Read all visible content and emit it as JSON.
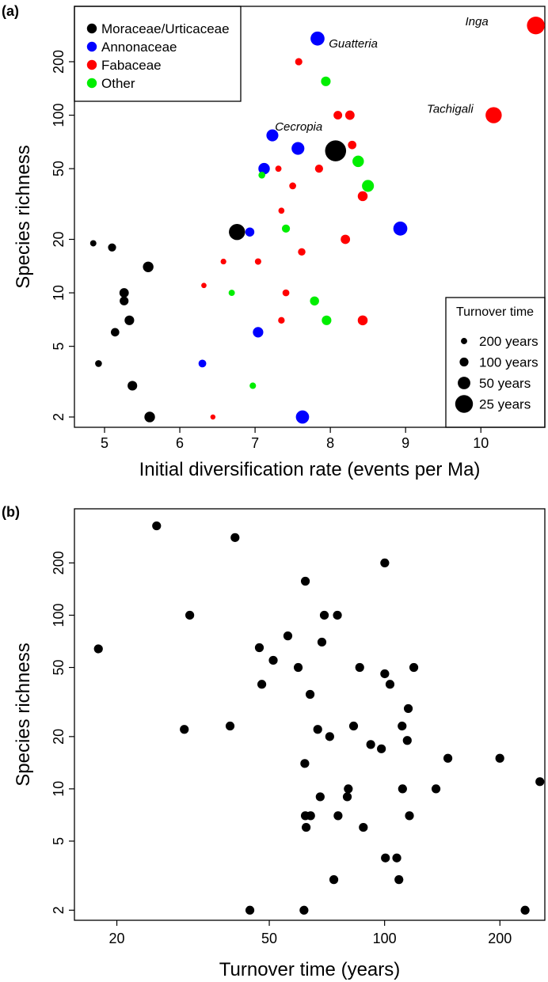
{
  "colors": {
    "moraceae": "#000000",
    "annonaceae": "#0000ff",
    "fabaceae": "#ff0000",
    "other": "#00ee00",
    "panel_b_points": "#000000"
  },
  "chart_data": [
    {
      "panel": "(a)",
      "type": "scatter",
      "xlabel": "Initial diversification rate (events per Ma)",
      "ylabel": "Species richness",
      "xlim": [
        4.6,
        10.85
      ],
      "ylim": [
        1.75,
        410
      ],
      "x_scale": "linear",
      "y_scale": "log",
      "x_ticks": [
        5,
        6,
        7,
        8,
        9,
        10
      ],
      "y_ticks": [
        2,
        5,
        10,
        20,
        50,
        100,
        200
      ],
      "grid": false,
      "legend_position": "top-left",
      "legend": [
        {
          "name": "Moraceae/Urticaceae",
          "color_key": "moraceae"
        },
        {
          "name": "Annonaceae",
          "color_key": "annonaceae"
        },
        {
          "name": "Fabaceae",
          "color_key": "fabaceae"
        },
        {
          "name": "Other",
          "color_key": "other"
        }
      ],
      "size_legend": {
        "title": "Turnover time",
        "position": "bottom-right",
        "entries": [
          {
            "label": "200 years",
            "turnover": 200
          },
          {
            "label": "100 years",
            "turnover": 100
          },
          {
            "label": "50 years",
            "turnover": 50
          },
          {
            "label": "25 years",
            "turnover": 25
          }
        ]
      },
      "annotations": [
        {
          "text": "Inga",
          "x": 10.1,
          "y": 320,
          "anchor": "end"
        },
        {
          "text": "Guatteria",
          "x": 7.98,
          "y": 240,
          "anchor": "start"
        },
        {
          "text": "Tachigali",
          "x": 9.9,
          "y": 103,
          "anchor": "end"
        },
        {
          "text": "Cecropia",
          "x": 7.58,
          "y": 82,
          "anchor": "middle"
        }
      ],
      "series": [
        {
          "name": "Moraceae/Urticaceae",
          "color_key": "moraceae",
          "points": [
            {
              "x": 4.85,
              "y": 19,
              "turnover": 200
            },
            {
              "x": 5.1,
              "y": 18,
              "turnover": 120
            },
            {
              "x": 5.58,
              "y": 14,
              "turnover": 70
            },
            {
              "x": 5.26,
              "y": 10,
              "turnover": 90
            },
            {
              "x": 5.26,
              "y": 9,
              "turnover": 100
            },
            {
              "x": 5.33,
              "y": 7,
              "turnover": 85
            },
            {
              "x": 5.14,
              "y": 6,
              "turnover": 110
            },
            {
              "x": 4.92,
              "y": 4,
              "turnover": 170
            },
            {
              "x": 5.37,
              "y": 3,
              "turnover": 85
            },
            {
              "x": 5.6,
              "y": 2,
              "turnover": 70
            },
            {
              "x": 6.76,
              "y": 22,
              "turnover": 30
            },
            {
              "x": 8.07,
              "y": 63,
              "turnover": 17.8
            }
          ]
        },
        {
          "name": "Annonaceae",
          "color_key": "annonaceae",
          "points": [
            {
              "x": 7.83,
              "y": 270,
              "turnover": 40
            },
            {
              "x": 7.23,
              "y": 77,
              "turnover": 55
            },
            {
              "x": 7.57,
              "y": 65,
              "turnover": 48
            },
            {
              "x": 7.12,
              "y": 50,
              "turnover": 60
            },
            {
              "x": 6.93,
              "y": 22,
              "turnover": 95
            },
            {
              "x": 8.93,
              "y": 23,
              "turnover": 40
            },
            {
              "x": 7.04,
              "y": 6,
              "turnover": 72
            },
            {
              "x": 6.3,
              "y": 4,
              "turnover": 130
            },
            {
              "x": 7.63,
              "y": 2,
              "turnover": 45
            }
          ]
        },
        {
          "name": "Fabaceae",
          "color_key": "fabaceae",
          "points": [
            {
              "x": 10.73,
              "y": 320,
              "turnover": 25
            },
            {
              "x": 10.17,
              "y": 100,
              "turnover": 30
            },
            {
              "x": 7.58,
              "y": 200,
              "turnover": 150
            },
            {
              "x": 8.1,
              "y": 100,
              "turnover": 105
            },
            {
              "x": 8.26,
              "y": 100,
              "turnover": 90
            },
            {
              "x": 8.29,
              "y": 68,
              "turnover": 110
            },
            {
              "x": 7.85,
              "y": 50,
              "turnover": 120
            },
            {
              "x": 7.31,
              "y": 50,
              "turnover": 200
            },
            {
              "x": 7.5,
              "y": 40,
              "turnover": 165
            },
            {
              "x": 8.43,
              "y": 35,
              "turnover": 80
            },
            {
              "x": 7.35,
              "y": 29,
              "turnover": 210
            },
            {
              "x": 8.2,
              "y": 20,
              "turnover": 90
            },
            {
              "x": 7.62,
              "y": 17,
              "turnover": 140
            },
            {
              "x": 6.58,
              "y": 15,
              "turnover": 240
            },
            {
              "x": 7.04,
              "y": 15,
              "turnover": 190
            },
            {
              "x": 6.32,
              "y": 11,
              "turnover": 280
            },
            {
              "x": 7.41,
              "y": 10,
              "turnover": 165
            },
            {
              "x": 7.35,
              "y": 7,
              "turnover": 180
            },
            {
              "x": 8.43,
              "y": 7,
              "turnover": 80
            },
            {
              "x": 6.44,
              "y": 2,
              "turnover": 300
            }
          ]
        },
        {
          "name": "Other",
          "color_key": "other",
          "points": [
            {
              "x": 7.94,
              "y": 155,
              "turnover": 85
            },
            {
              "x": 8.37,
              "y": 55,
              "turnover": 60
            },
            {
              "x": 8.5,
              "y": 40,
              "turnover": 55
            },
            {
              "x": 7.09,
              "y": 46,
              "turnover": 170
            },
            {
              "x": 7.41,
              "y": 23,
              "turnover": 120
            },
            {
              "x": 6.69,
              "y": 10,
              "turnover": 200
            },
            {
              "x": 7.79,
              "y": 9,
              "turnover": 95
            },
            {
              "x": 7.95,
              "y": 7,
              "turnover": 85
            },
            {
              "x": 6.97,
              "y": 3,
              "turnover": 190
            }
          ]
        }
      ]
    },
    {
      "panel": "(b)",
      "type": "scatter",
      "xlabel": "Turnover time (years)",
      "ylabel": "Species richness",
      "xlim": [
        15.5,
        262
      ],
      "ylim": [
        1.75,
        410
      ],
      "x_scale": "log",
      "y_scale": "log",
      "x_ticks": [
        20,
        50,
        100,
        200
      ],
      "y_ticks": [
        2,
        5,
        10,
        20,
        50,
        100,
        200
      ],
      "grid": false,
      "series": [
        {
          "color_key": "panel_b_points",
          "points": [
            {
              "x": 17.9,
              "y": 64
            },
            {
              "x": 25.4,
              "y": 327
            },
            {
              "x": 30.0,
              "y": 22
            },
            {
              "x": 31.0,
              "y": 100
            },
            {
              "x": 39.5,
              "y": 23
            },
            {
              "x": 40.7,
              "y": 280
            },
            {
              "x": 44.5,
              "y": 2
            },
            {
              "x": 47.1,
              "y": 65
            },
            {
              "x": 47.8,
              "y": 40
            },
            {
              "x": 51.2,
              "y": 55
            },
            {
              "x": 55.9,
              "y": 76
            },
            {
              "x": 59.5,
              "y": 50
            },
            {
              "x": 62.1,
              "y": 157
            },
            {
              "x": 61.6,
              "y": 2
            },
            {
              "x": 61.9,
              "y": 14
            },
            {
              "x": 62.1,
              "y": 7
            },
            {
              "x": 62.4,
              "y": 6
            },
            {
              "x": 64.1,
              "y": 7
            },
            {
              "x": 63.9,
              "y": 35
            },
            {
              "x": 66.9,
              "y": 22
            },
            {
              "x": 67.9,
              "y": 9
            },
            {
              "x": 68.6,
              "y": 70
            },
            {
              "x": 69.6,
              "y": 100
            },
            {
              "x": 71.9,
              "y": 20
            },
            {
              "x": 73.7,
              "y": 3
            },
            {
              "x": 75.6,
              "y": 7
            },
            {
              "x": 75.3,
              "y": 100
            },
            {
              "x": 79.9,
              "y": 9
            },
            {
              "x": 80.4,
              "y": 10
            },
            {
              "x": 83.0,
              "y": 23
            },
            {
              "x": 86.1,
              "y": 50
            },
            {
              "x": 88.0,
              "y": 6
            },
            {
              "x": 92.0,
              "y": 18
            },
            {
              "x": 98.1,
              "y": 17
            },
            {
              "x": 100.1,
              "y": 46
            },
            {
              "x": 100.1,
              "y": 200
            },
            {
              "x": 100.5,
              "y": 4
            },
            {
              "x": 103.3,
              "y": 40
            },
            {
              "x": 107.6,
              "y": 4
            },
            {
              "x": 109.0,
              "y": 3
            },
            {
              "x": 111.1,
              "y": 23
            },
            {
              "x": 111.4,
              "y": 10
            },
            {
              "x": 114.6,
              "y": 19
            },
            {
              "x": 115.3,
              "y": 29
            },
            {
              "x": 116.1,
              "y": 7
            },
            {
              "x": 119.2,
              "y": 50
            },
            {
              "x": 136.2,
              "y": 10
            },
            {
              "x": 146.3,
              "y": 15
            },
            {
              "x": 199.9,
              "y": 15
            },
            {
              "x": 232.7,
              "y": 2
            },
            {
              "x": 254.3,
              "y": 11
            }
          ]
        }
      ]
    }
  ]
}
